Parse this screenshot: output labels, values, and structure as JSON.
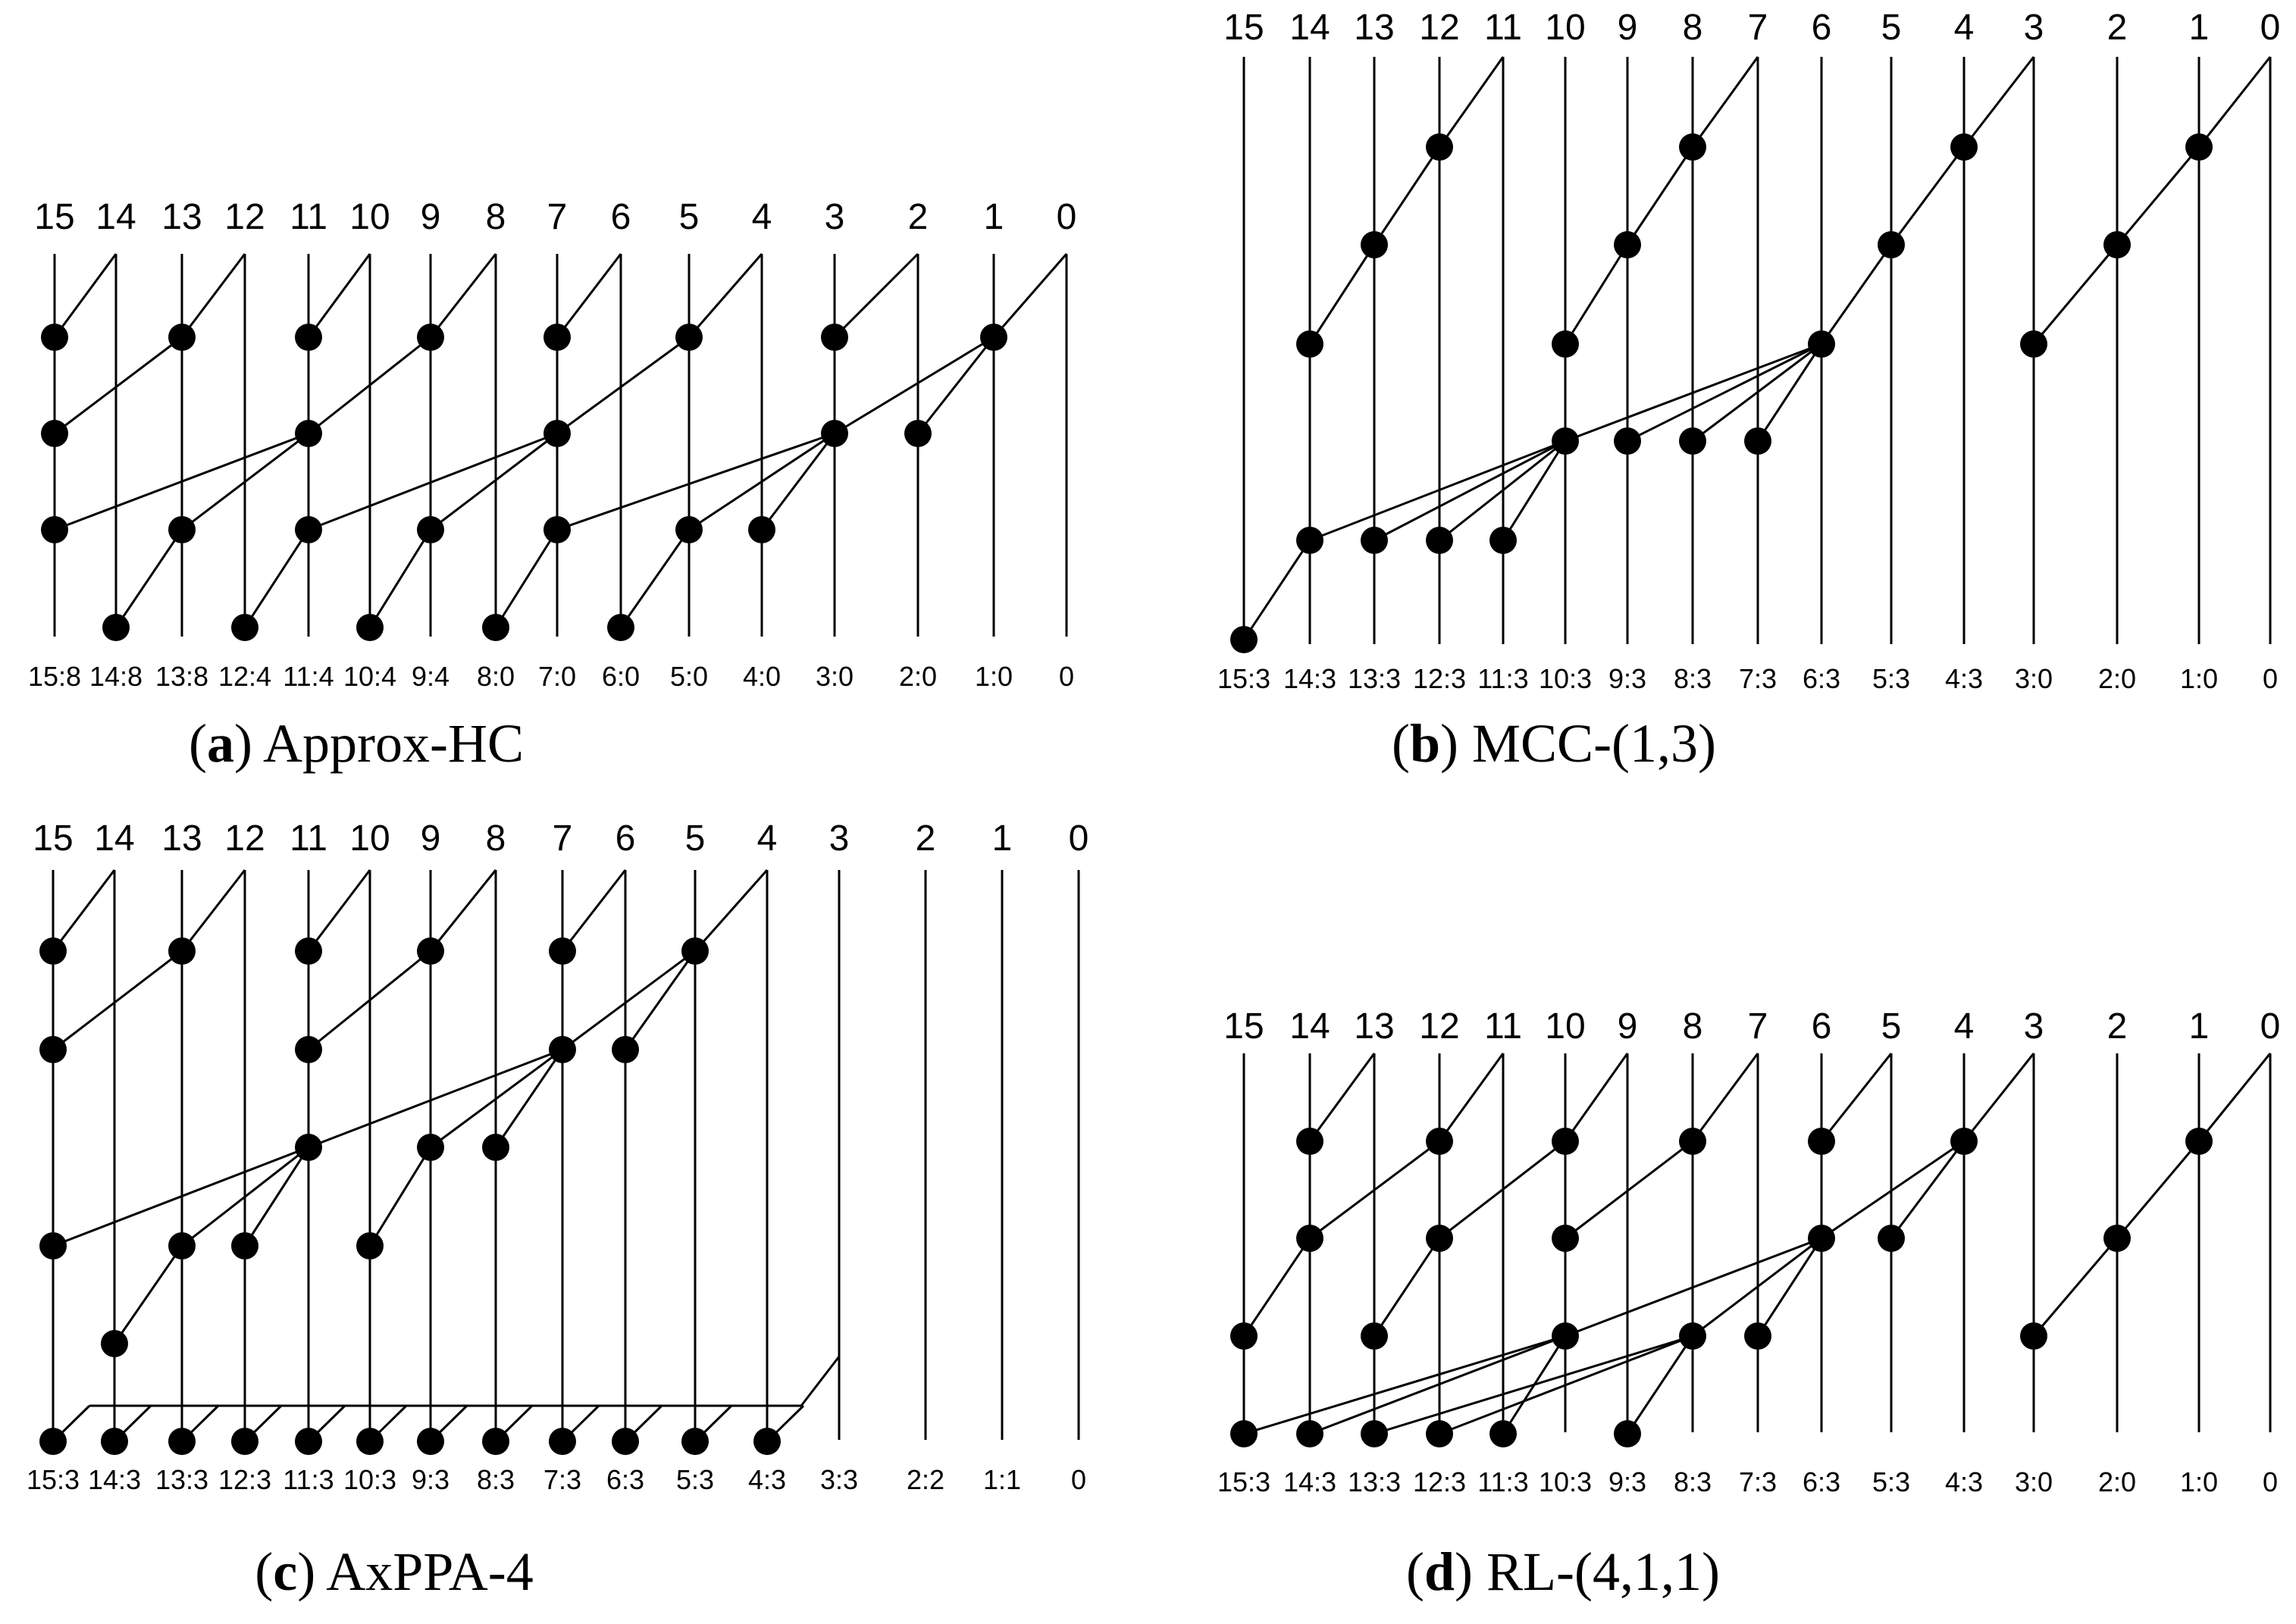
{
  "figure": {
    "panels": [
      {
        "id": "a",
        "caption_letter": "a",
        "caption_text": "Approx-HC",
        "top_labels": [
          "15",
          "14",
          "13",
          "12",
          "11",
          "10",
          "9",
          "8",
          "7",
          "6",
          "5",
          "4",
          "3",
          "2",
          "1",
          "0"
        ],
        "bottom_labels": [
          "15:8",
          "14:8",
          "13:8",
          "12:4",
          "11:4",
          "10:4",
          "9:4",
          "8:0",
          "7:0",
          "6:0",
          "5:0",
          "4:0",
          "3:0",
          "2:0",
          "1:0",
          "0"
        ]
      },
      {
        "id": "b",
        "caption_letter": "b",
        "caption_text": "MCC-(1,3)",
        "top_labels": [
          "15",
          "14",
          "13",
          "12",
          "11",
          "10",
          "9",
          "8",
          "7",
          "6",
          "5",
          "4",
          "3",
          "2",
          "1",
          "0"
        ],
        "bottom_labels": [
          "15:3",
          "14:3",
          "13:3",
          "12:3",
          "11:3",
          "10:3",
          "9:3",
          "8:3",
          "7:3",
          "6:3",
          "5:3",
          "4:3",
          "3:0",
          "2:0",
          "1:0",
          "0"
        ]
      },
      {
        "id": "c",
        "caption_letter": "c",
        "caption_text": "AxPPA-4",
        "top_labels": [
          "15",
          "14",
          "13",
          "12",
          "11",
          "10",
          "9",
          "8",
          "7",
          "6",
          "5",
          "4",
          "3",
          "2",
          "1",
          "0"
        ],
        "bottom_labels": [
          "15:3",
          "14:3",
          "13:3",
          "12:3",
          "11:3",
          "10:3",
          "9:3",
          "8:3",
          "7:3",
          "6:3",
          "5:3",
          "4:3",
          "3:3",
          "2:2",
          "1:1",
          "0"
        ]
      },
      {
        "id": "d",
        "caption_letter": "d",
        "caption_text": "RL-(4,1,1)",
        "top_labels": [
          "15",
          "14",
          "13",
          "12",
          "11",
          "10",
          "9",
          "8",
          "7",
          "6",
          "5",
          "4",
          "3",
          "2",
          "1",
          "0"
        ],
        "bottom_labels": [
          "15:3",
          "14:3",
          "13:3",
          "12:3",
          "11:3",
          "10:3",
          "9:3",
          "8:3",
          "7:3",
          "6:3",
          "5:3",
          "4:3",
          "3:0",
          "2:0",
          "1:0",
          "0"
        ]
      }
    ]
  }
}
